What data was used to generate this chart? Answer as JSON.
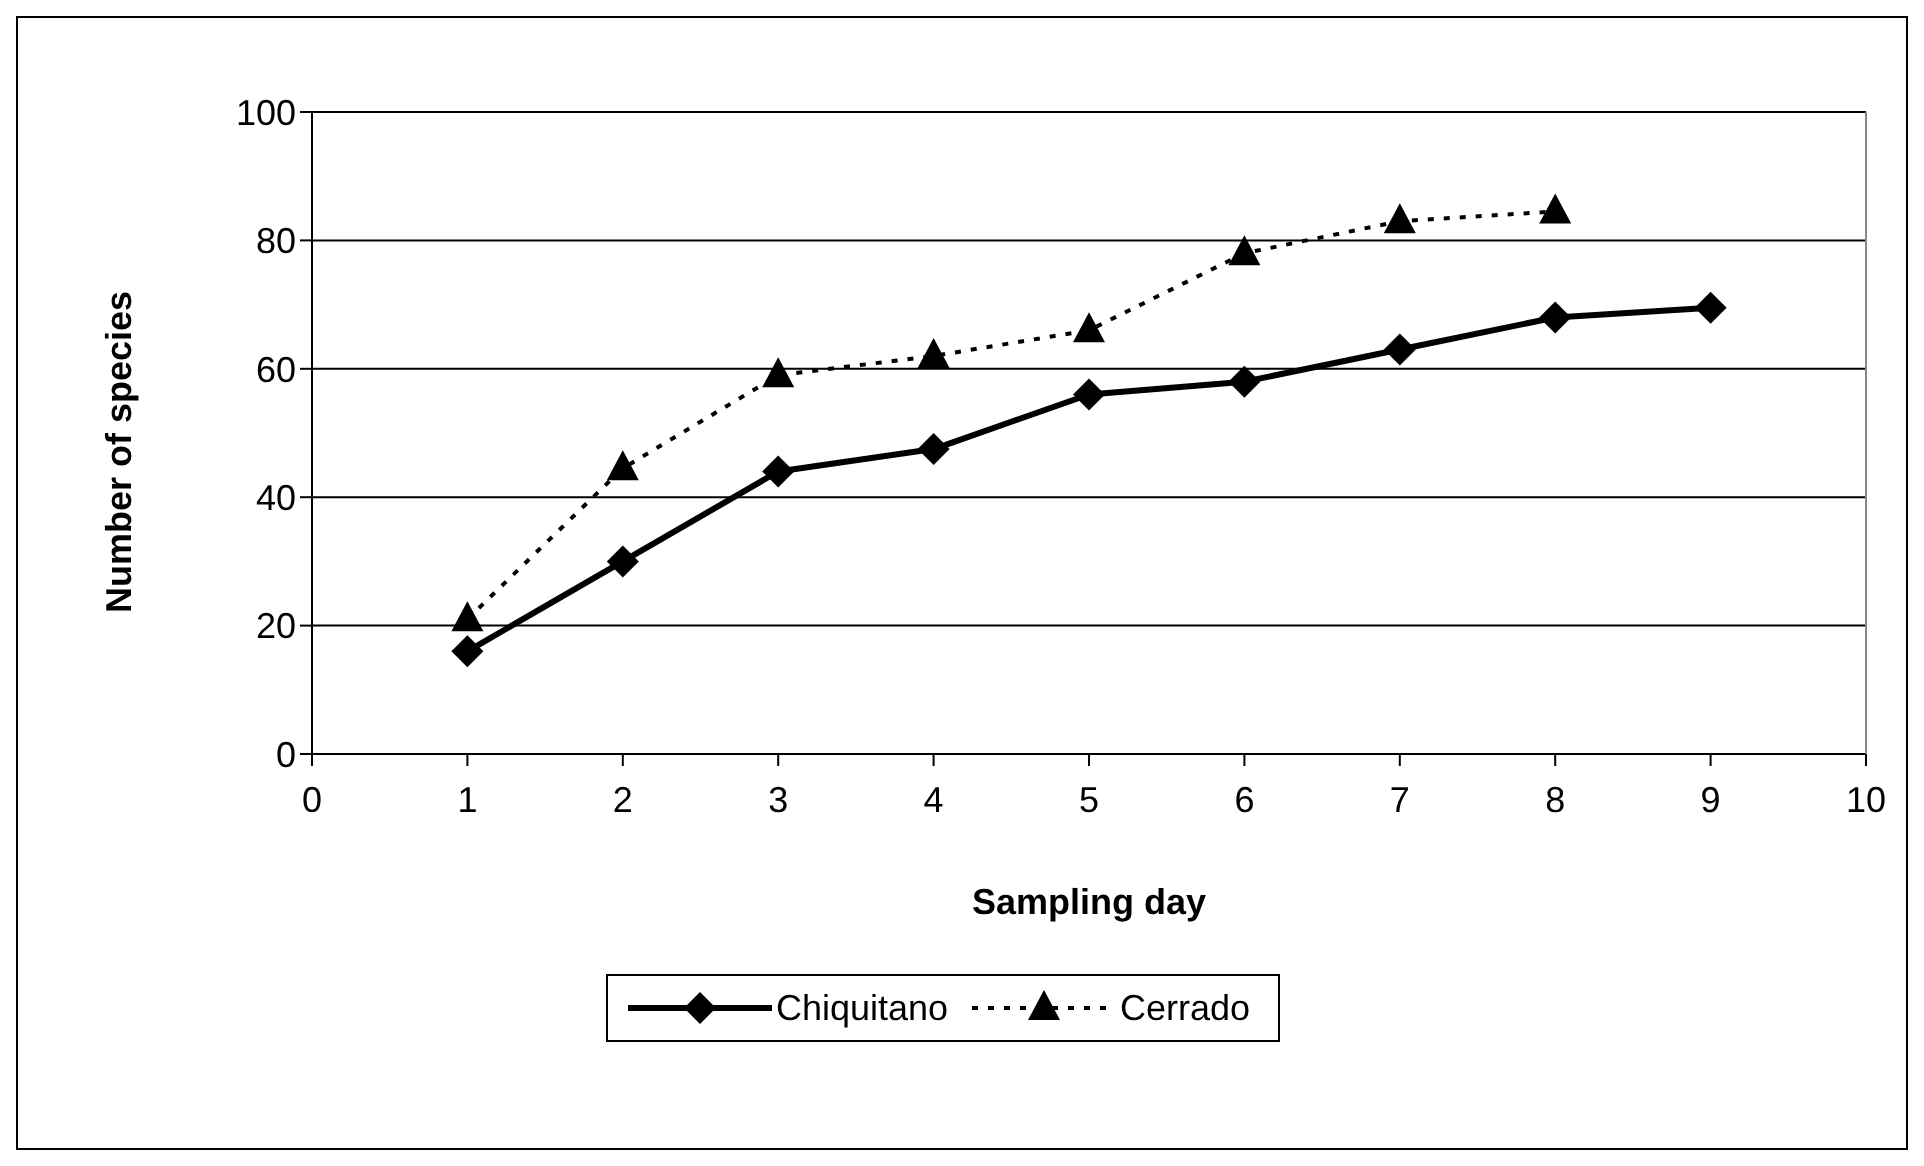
{
  "chart_data": {
    "type": "line",
    "xlabel": "Sampling day",
    "ylabel": "Number of species",
    "x": [
      1,
      2,
      3,
      4,
      5,
      6,
      7,
      8,
      9
    ],
    "xlim": [
      0,
      10
    ],
    "xticks": [
      0,
      1,
      2,
      3,
      4,
      5,
      6,
      7,
      8,
      9,
      10
    ],
    "ylim": [
      0,
      100
    ],
    "yticks": [
      0,
      20,
      40,
      60,
      80,
      100
    ],
    "grid": "y",
    "legend": "bottom",
    "series": [
      {
        "name": "Chiquitano",
        "color": "#000000",
        "marker": "diamond",
        "line_style": "solid",
        "values": [
          16,
          30,
          44,
          47.5,
          56,
          58,
          63,
          68,
          69.5
        ]
      },
      {
        "name": "Cerrado",
        "color": "#000000",
        "marker": "triangle",
        "line_style": "dotted",
        "values": [
          21,
          44.5,
          59,
          62,
          66,
          78,
          83,
          84.5,
          null
        ]
      }
    ]
  }
}
